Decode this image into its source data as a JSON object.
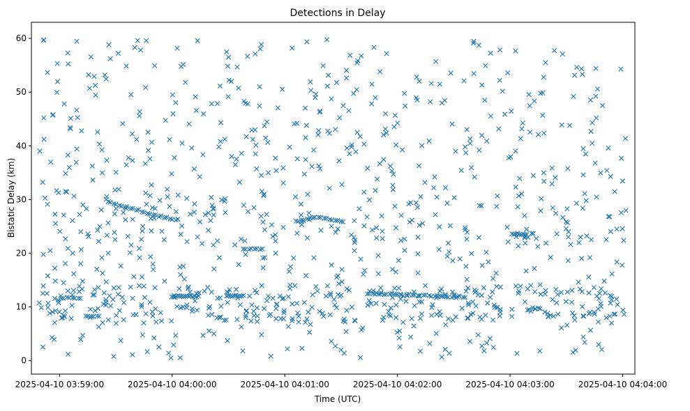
{
  "chart_data": {
    "type": "scatter",
    "title": "Detections in Delay",
    "xlabel": "Time (UTC)",
    "ylabel": "Bistatic Delay (km)",
    "x_unit": "seconds after 2025-04-10 03:58:00 UTC",
    "xlim": [
      45.0,
      366.5
    ],
    "ylim": [
      -2.5,
      63.0
    ],
    "x_ticks": [
      60,
      120,
      180,
      240,
      300,
      360
    ],
    "x_tick_labels": [
      "2025-04-10 03:59:00",
      "2025-04-10 04:00:00",
      "2025-04-10 04:01:00",
      "2025-04-10 04:02:00",
      "2025-04-10 04:03:00",
      "2025-04-10 04:04:00"
    ],
    "y_ticks": [
      0,
      10,
      20,
      30,
      40,
      50,
      60
    ],
    "y_tick_labels": [
      "0",
      "10",
      "20",
      "30",
      "40",
      "50",
      "60"
    ],
    "marker": "x",
    "color": "#1f77b4",
    "grid": false,
    "legend": "none",
    "tracks": [
      {
        "x": [
          86,
          89,
          92,
          95,
          98,
          101,
          104,
          107,
          110,
          113,
          116,
          119,
          122
        ],
        "y": [
          29.6,
          29.2,
          28.9,
          28.6,
          28.3,
          28.0,
          27.7,
          27.4,
          27.1,
          26.8,
          26.6,
          26.4,
          26.2
        ]
      },
      {
        "x": [
          121,
          123,
          125,
          127,
          129,
          131,
          133
        ],
        "y": [
          12.1,
          12.1,
          12.0,
          12.0,
          12.0,
          11.9,
          11.9
        ]
      },
      {
        "x": [
          149,
          151,
          153,
          155,
          157
        ],
        "y": [
          12.0,
          12.0,
          12.1,
          12.0,
          12.0
        ]
      },
      {
        "x": [
          186,
          189,
          192,
          195,
          198,
          201,
          204,
          207,
          210
        ],
        "y": [
          26.0,
          26.2,
          26.4,
          26.6,
          26.7,
          26.5,
          26.3,
          26.1,
          25.9
        ]
      },
      {
        "x": [
          224,
          227,
          230,
          233,
          236,
          239,
          242,
          245,
          248,
          251,
          254,
          257,
          260,
          263
        ],
        "y": [
          12.4,
          12.5,
          12.4,
          12.3,
          12.4,
          12.3,
          12.2,
          12.3,
          12.2,
          12.1,
          12.2,
          12.1,
          12.0,
          12.0
        ]
      },
      {
        "x": [
          266,
          269,
          272,
          275
        ],
        "y": [
          11.9,
          11.8,
          11.9,
          11.8
        ]
      },
      {
        "x": [
          301,
          303,
          305,
          307
        ],
        "y": [
          23.6,
          23.6,
          23.5,
          23.6
        ]
      },
      {
        "x": [
          61,
          64,
          67,
          70
        ],
        "y": [
          11.6,
          11.8,
          11.7,
          11.6
        ]
      },
      {
        "x": [
          74,
          77,
          80
        ],
        "y": [
          8.3,
          8.2,
          8.3
        ]
      },
      {
        "x": [
          158,
          161,
          164,
          167
        ],
        "y": [
          20.8,
          20.7,
          20.8,
          20.7
        ]
      }
    ],
    "noise": {
      "count": 1050,
      "seed": 7,
      "x_range": [
        49,
        362
      ],
      "y_range": [
        0.5,
        59.8
      ],
      "low_delay_clusters": [
        {
          "x_range": [
            49,
            362
          ],
          "y_range": [
            7,
            14
          ],
          "count": 260
        },
        {
          "x_range": [
            49,
            362
          ],
          "y_range": [
            22,
            32
          ],
          "count": 80
        }
      ]
    }
  }
}
